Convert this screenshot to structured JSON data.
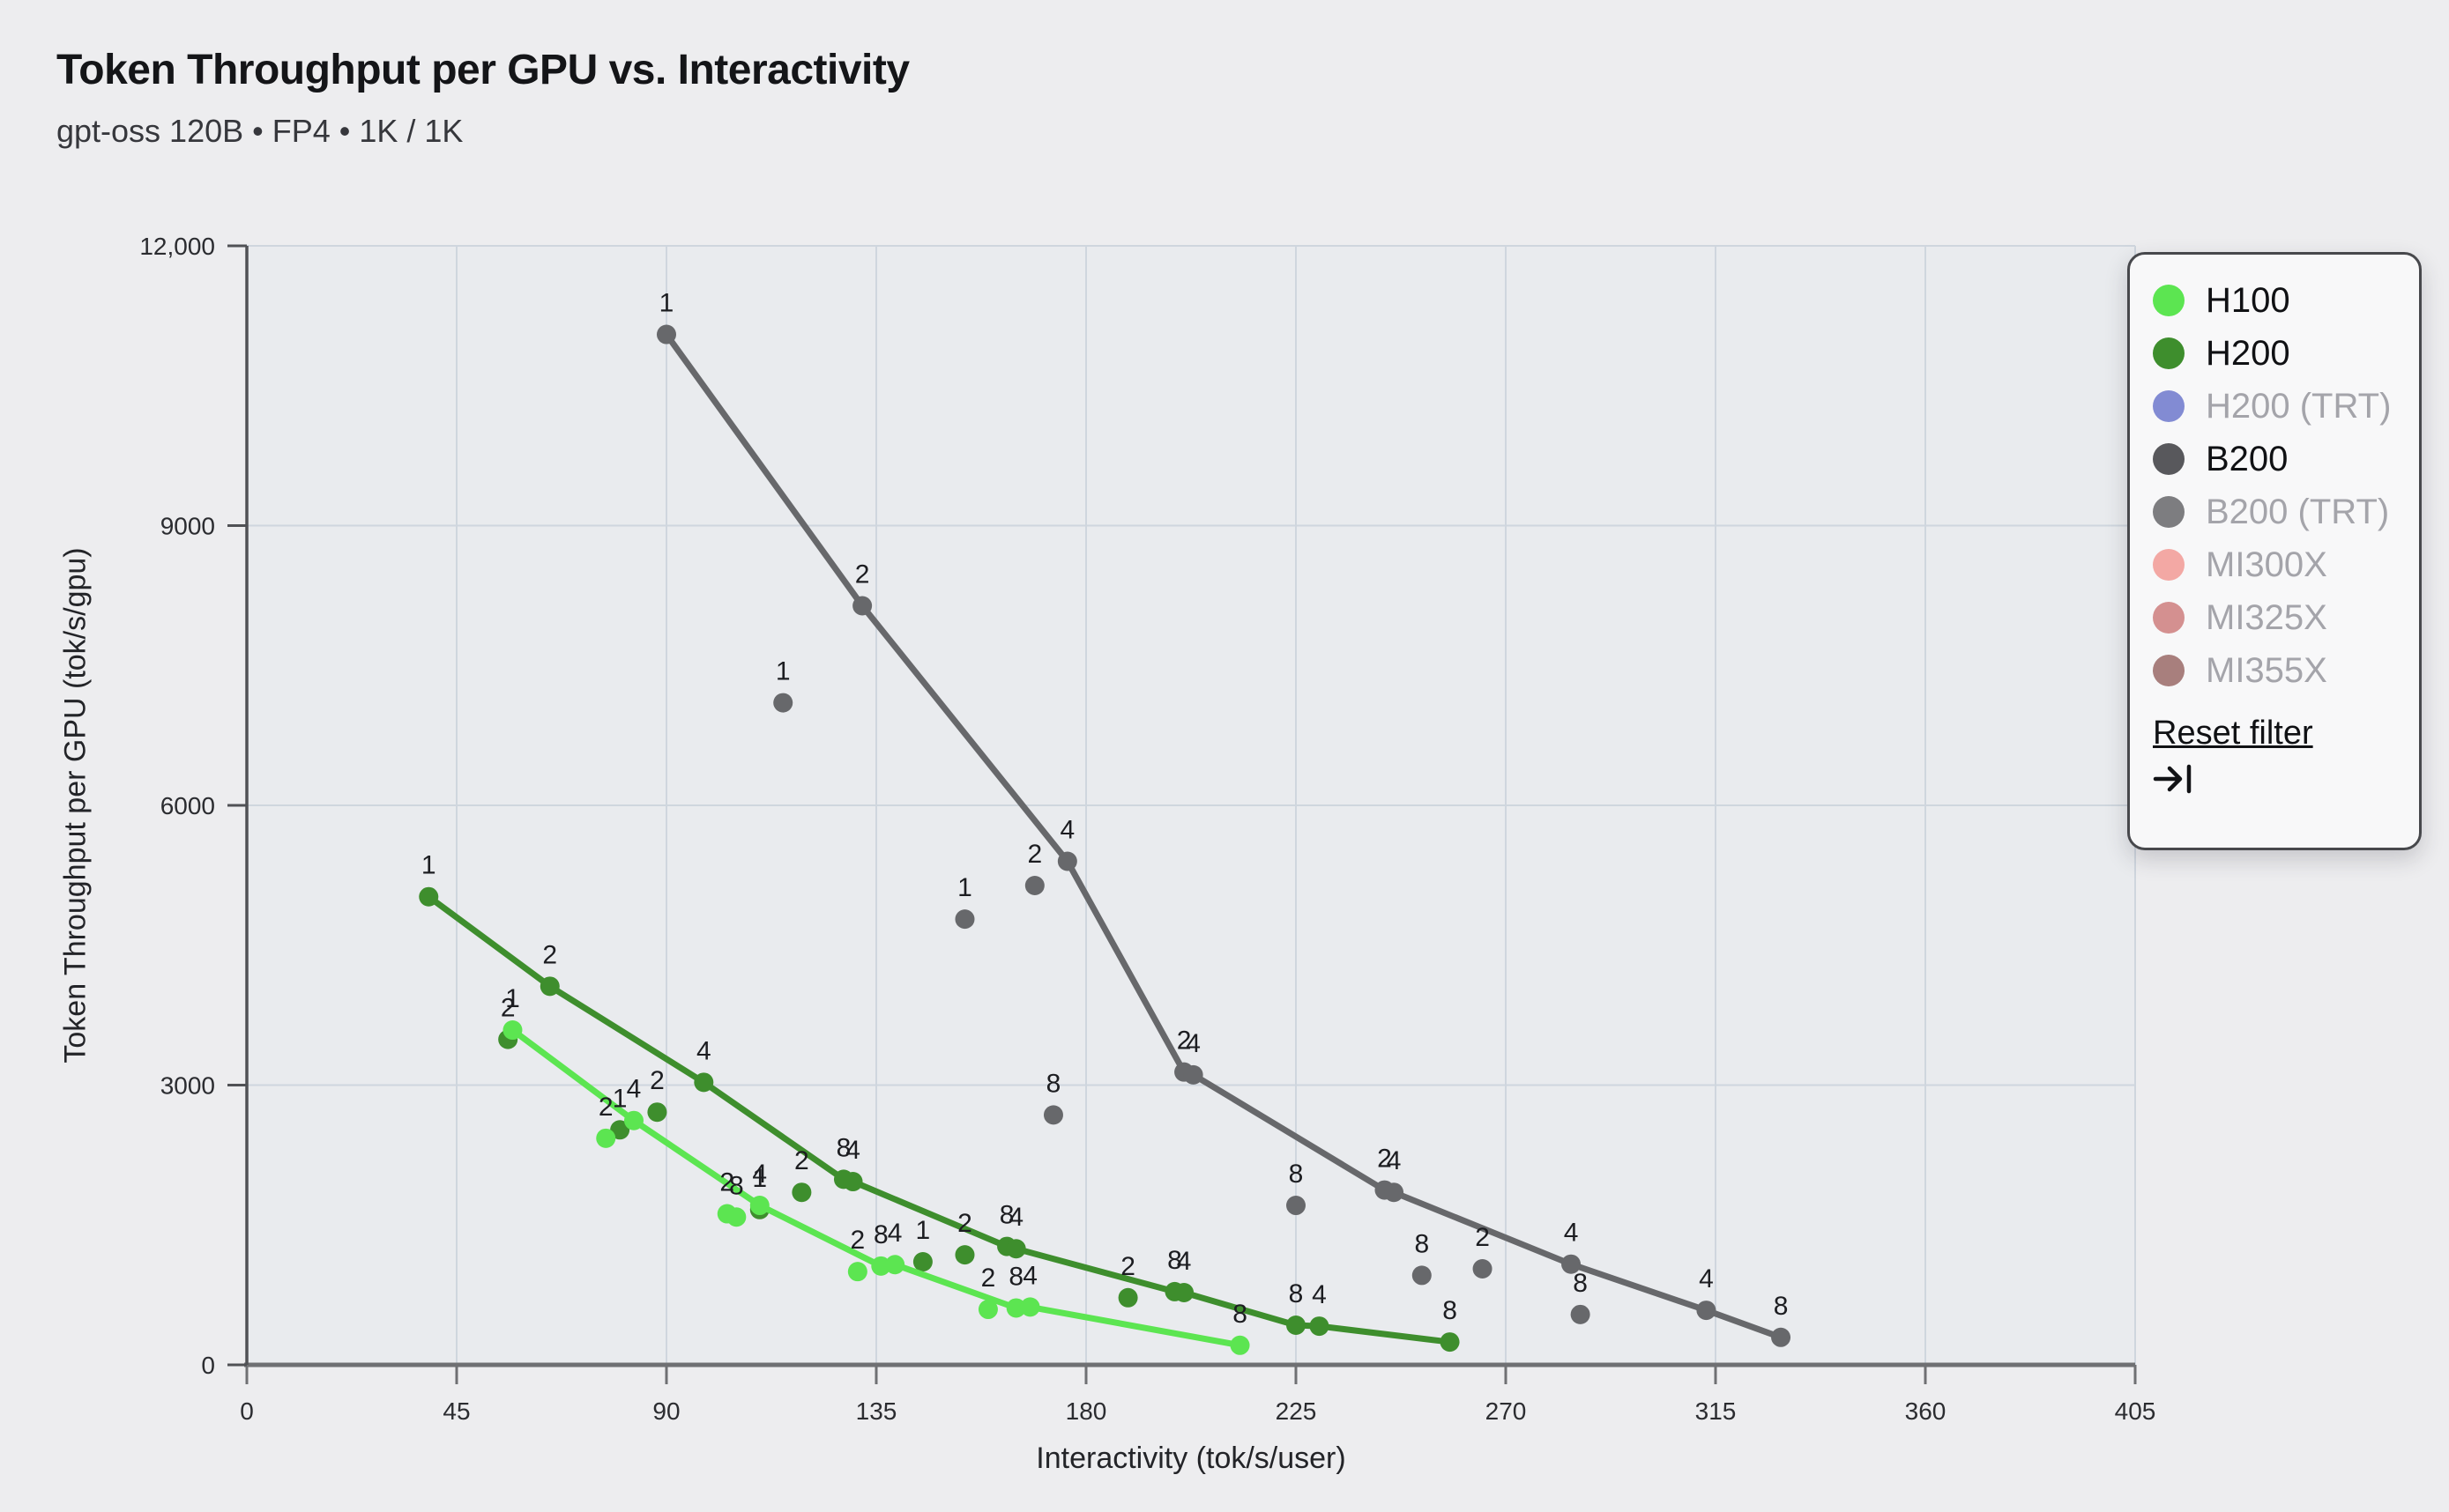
{
  "header": {
    "title": "Token Throughput per GPU vs. Interactivity",
    "subtitle": "gpt-oss 120B • FP4 • 1K / 1K"
  },
  "chart_data": {
    "type": "scatter",
    "title": "Token Throughput per GPU vs. Interactivity",
    "subtitle": "gpt-oss 120B • FP4 • 1K / 1K",
    "xlabel": "Interactivity (tok/s/user)",
    "ylabel": "Token Throughput per GPU (tok/s/gpu)",
    "xlim": [
      0,
      405
    ],
    "ylim": [
      0,
      12000
    ],
    "grid": true,
    "plot_bg": "#e9ebee",
    "grid_color": "#cfd6de",
    "x_axis_color": "#6f7073",
    "y_axis_color": "#505155",
    "tick_label_color": "#2b2c30",
    "point_label_color": "#1c1d21",
    "x_ticks": [
      {
        "v": 0,
        "label": "0"
      },
      {
        "v": 45,
        "label": "45"
      },
      {
        "v": 90,
        "label": "90"
      },
      {
        "v": 135,
        "label": "135"
      },
      {
        "v": 180,
        "label": "180"
      },
      {
        "v": 225,
        "label": "225"
      },
      {
        "v": 270,
        "label": "270"
      },
      {
        "v": 315,
        "label": "315"
      },
      {
        "v": 360,
        "label": "360"
      },
      {
        "v": 405,
        "label": "405"
      }
    ],
    "y_ticks": [
      {
        "v": 0,
        "label": "0"
      },
      {
        "v": 3000,
        "label": "3000"
      },
      {
        "v": 6000,
        "label": "6000"
      },
      {
        "v": 9000,
        "label": "9000"
      },
      {
        "v": 12000,
        "label": "12,000"
      }
    ],
    "note": "points are [interactivity tok/s/user, throughput tok/s/gpu, TP-degree label]",
    "series": [
      {
        "name": "H100",
        "color": "#5ce551",
        "frontier_line": [
          [
            57,
            3590,
            "1"
          ],
          [
            83,
            2620,
            "4"
          ],
          [
            110,
            1710,
            "4"
          ],
          [
            136,
            1060,
            "8"
          ],
          [
            139,
            1075,
            "4"
          ],
          [
            165,
            610,
            "8"
          ],
          [
            168,
            620,
            "4"
          ],
          [
            213,
            210,
            "8"
          ]
        ],
        "scatter": [
          [
            77,
            2430,
            "2"
          ],
          [
            103,
            1620,
            "2"
          ],
          [
            105,
            1585,
            "8"
          ],
          [
            131,
            1000,
            "2"
          ],
          [
            159,
            595,
            "2"
          ]
        ]
      },
      {
        "name": "H200",
        "color": "#3e8e2d",
        "frontier_line": [
          [
            39,
            5020,
            "1"
          ],
          [
            65,
            4060,
            "2"
          ],
          [
            98,
            3030,
            "4"
          ],
          [
            128,
            1990,
            "8"
          ],
          [
            130,
            1965,
            "4"
          ],
          [
            163,
            1270,
            "8"
          ],
          [
            165,
            1245,
            "4"
          ],
          [
            199,
            785,
            "8"
          ],
          [
            201,
            775,
            "4"
          ],
          [
            225,
            425,
            "8"
          ],
          [
            230,
            415,
            "4"
          ],
          [
            258,
            245,
            "8"
          ]
        ],
        "scatter": [
          [
            56,
            3490,
            "2"
          ],
          [
            80,
            2520,
            "1"
          ],
          [
            88,
            2710,
            "2"
          ],
          [
            110,
            1665,
            "1"
          ],
          [
            119,
            1850,
            "2"
          ],
          [
            145,
            1105,
            "1"
          ],
          [
            154,
            1180,
            "2"
          ],
          [
            189,
            720,
            "2"
          ]
        ]
      },
      {
        "name": "B200",
        "color": "#67686b",
        "frontier_line": [
          [
            90,
            11050,
            "1"
          ],
          [
            132,
            8140,
            "2"
          ],
          [
            176,
            5400,
            "4"
          ],
          [
            201,
            3140,
            "2"
          ],
          [
            203,
            3110,
            "4"
          ],
          [
            244,
            1875,
            "2"
          ],
          [
            246,
            1850,
            "4"
          ],
          [
            284,
            1080,
            "4"
          ],
          [
            313,
            585,
            "4"
          ],
          [
            329,
            295,
            "8"
          ]
        ],
        "scatter": [
          [
            115,
            7100,
            "1"
          ],
          [
            154,
            4780,
            "1"
          ],
          [
            169,
            5140,
            "2"
          ],
          [
            173,
            2680,
            "8"
          ],
          [
            225,
            1710,
            "8"
          ],
          [
            252,
            960,
            "8"
          ],
          [
            265,
            1030,
            "2"
          ],
          [
            286,
            540,
            "8"
          ]
        ]
      }
    ]
  },
  "legend": {
    "items": [
      {
        "label": "H100",
        "color": "#5ce551",
        "active": true
      },
      {
        "label": "H200",
        "color": "#3e8e2d",
        "active": true
      },
      {
        "label": "H200 (TRT)",
        "color": "#828bd3",
        "active": false
      },
      {
        "label": "B200",
        "color": "#58585c",
        "active": true
      },
      {
        "label": "B200 (TRT)",
        "color": "#7d7d80",
        "active": false
      },
      {
        "label": "MI300X",
        "color": "#f3a8a4",
        "active": false
      },
      {
        "label": "MI325X",
        "color": "#d49090",
        "active": false
      },
      {
        "label": "MI355X",
        "color": "#a87f7d",
        "active": false
      }
    ],
    "reset_label": "Reset filter"
  }
}
